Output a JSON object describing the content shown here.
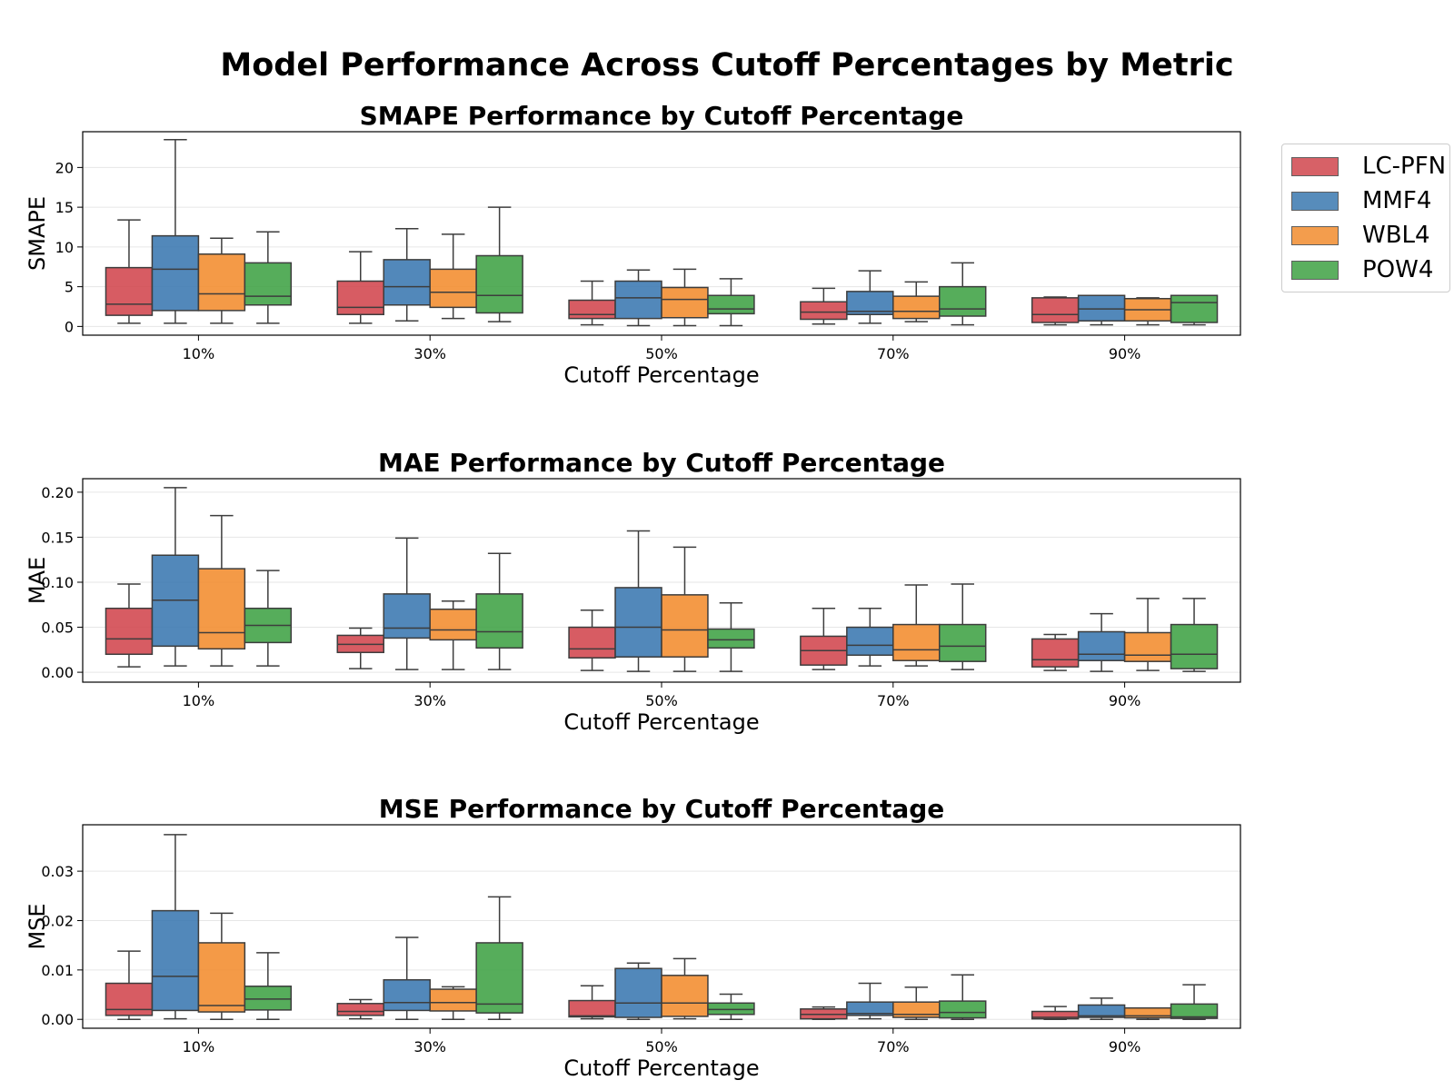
{
  "suptitle": "Model Performance Across Cutoff Percentages by Metric",
  "legend": {
    "placement": "right, outside top",
    "items": [
      {
        "name": "LC-PFN",
        "color": "#d1464d"
      },
      {
        "name": "MMF4",
        "color": "#3a78b0"
      },
      {
        "name": "WBL4",
        "color": "#f28c2e"
      },
      {
        "name": "POW4",
        "color": "#3fa244"
      }
    ]
  },
  "chart_data": [
    {
      "type": "box",
      "title": "SMAPE Performance by Cutoff Percentage",
      "xlabel": "Cutoff Percentage",
      "ylabel": "SMAPE",
      "categories": [
        "10%",
        "30%",
        "50%",
        "70%",
        "90%"
      ],
      "ylim": [
        -1.1,
        24.5
      ],
      "yticks": [
        0,
        5,
        10,
        15,
        20
      ],
      "ytick_labels": [
        "0",
        "5",
        "10",
        "15",
        "20"
      ],
      "grid": "horizontal",
      "series": [
        {
          "name": "LC-PFN",
          "boxes": [
            [
              0.4,
              1.4,
              2.8,
              7.4,
              13.4
            ],
            [
              0.4,
              1.5,
              2.4,
              5.7,
              9.4
            ],
            [
              0.2,
              1.0,
              1.5,
              3.3,
              5.7
            ],
            [
              0.3,
              0.9,
              1.8,
              3.1,
              4.8
            ],
            [
              0.2,
              0.5,
              1.5,
              3.6,
              3.7
            ]
          ]
        },
        {
          "name": "MMF4",
          "boxes": [
            [
              0.4,
              2.0,
              7.2,
              11.4,
              23.5
            ],
            [
              0.7,
              2.7,
              5.0,
              8.4,
              12.3
            ],
            [
              0.1,
              1.0,
              3.6,
              5.7,
              7.1
            ],
            [
              0.4,
              1.5,
              1.9,
              4.4,
              7.0
            ],
            [
              0.2,
              0.7,
              2.2,
              3.9,
              3.9
            ]
          ]
        },
        {
          "name": "WBL4",
          "boxes": [
            [
              0.4,
              2.0,
              4.1,
              9.1,
              11.1
            ],
            [
              1.0,
              2.4,
              4.3,
              7.2,
              11.6
            ],
            [
              0.1,
              1.1,
              3.4,
              4.9,
              7.2
            ],
            [
              0.6,
              1.0,
              1.9,
              3.8,
              5.6
            ],
            [
              0.2,
              0.7,
              2.1,
              3.5,
              3.6
            ]
          ]
        },
        {
          "name": "POW4",
          "boxes": [
            [
              0.4,
              2.7,
              3.8,
              8.0,
              11.9
            ],
            [
              0.6,
              1.7,
              3.9,
              8.9,
              15.0
            ],
            [
              0.1,
              1.6,
              2.2,
              3.9,
              6.0
            ],
            [
              0.2,
              1.3,
              2.2,
              5.0,
              8.0
            ],
            [
              0.2,
              0.5,
              3.0,
              3.9,
              3.9
            ]
          ]
        }
      ]
    },
    {
      "type": "box",
      "title": "MAE Performance by Cutoff Percentage",
      "xlabel": "Cutoff Percentage",
      "ylabel": "MAE",
      "categories": [
        "10%",
        "30%",
        "50%",
        "70%",
        "90%"
      ],
      "ylim": [
        -0.011,
        0.215
      ],
      "yticks": [
        0,
        0.05,
        0.1,
        0.15,
        0.2
      ],
      "ytick_labels": [
        "0.00",
        "0.05",
        "0.10",
        "0.15",
        "0.20"
      ],
      "grid": "horizontal",
      "series": [
        {
          "name": "LC-PFN",
          "boxes": [
            [
              0.006,
              0.02,
              0.037,
              0.071,
              0.098
            ],
            [
              0.004,
              0.022,
              0.031,
              0.041,
              0.049
            ],
            [
              0.002,
              0.016,
              0.026,
              0.05,
              0.069
            ],
            [
              0.003,
              0.008,
              0.024,
              0.04,
              0.071
            ],
            [
              0.002,
              0.006,
              0.014,
              0.037,
              0.042
            ]
          ]
        },
        {
          "name": "MMF4",
          "boxes": [
            [
              0.007,
              0.029,
              0.08,
              0.13,
              0.205
            ],
            [
              0.003,
              0.038,
              0.049,
              0.087,
              0.149
            ],
            [
              0.001,
              0.017,
              0.05,
              0.094,
              0.157
            ],
            [
              0.007,
              0.019,
              0.03,
              0.05,
              0.071
            ],
            [
              0.001,
              0.013,
              0.02,
              0.045,
              0.065
            ]
          ]
        },
        {
          "name": "WBL4",
          "boxes": [
            [
              0.007,
              0.026,
              0.044,
              0.115,
              0.174
            ],
            [
              0.003,
              0.036,
              0.047,
              0.07,
              0.079
            ],
            [
              0.001,
              0.017,
              0.047,
              0.086,
              0.139
            ],
            [
              0.007,
              0.013,
              0.025,
              0.053,
              0.097
            ],
            [
              0.002,
              0.012,
              0.019,
              0.044,
              0.082
            ]
          ]
        },
        {
          "name": "POW4",
          "boxes": [
            [
              0.007,
              0.033,
              0.052,
              0.071,
              0.113
            ],
            [
              0.003,
              0.027,
              0.045,
              0.087,
              0.132
            ],
            [
              0.001,
              0.027,
              0.036,
              0.048,
              0.077
            ],
            [
              0.003,
              0.012,
              0.029,
              0.053,
              0.098
            ],
            [
              0.001,
              0.004,
              0.02,
              0.053,
              0.082
            ]
          ]
        }
      ]
    },
    {
      "type": "box",
      "title": "MSE Performance by Cutoff Percentage",
      "xlabel": "Cutoff Percentage",
      "ylabel": "MSE",
      "categories": [
        "10%",
        "30%",
        "50%",
        "70%",
        "90%"
      ],
      "ylim": [
        -0.0018,
        0.0394
      ],
      "yticks": [
        0,
        0.01,
        0.02,
        0.03
      ],
      "ytick_labels": [
        "0.00",
        "0.01",
        "0.02",
        "0.03"
      ],
      "grid": "horizontal",
      "series": [
        {
          "name": "LC-PFN",
          "boxes": [
            [
              0.0,
              0.0008,
              0.002,
              0.0073,
              0.0138
            ],
            [
              0.0001,
              0.0008,
              0.0016,
              0.0032,
              0.004
            ],
            [
              0.0001,
              0.0005,
              0.0007,
              0.0038,
              0.0068
            ],
            [
              0.0,
              0.0001,
              0.001,
              0.0021,
              0.0025
            ],
            [
              0.0,
              0.0001,
              0.0004,
              0.0016,
              0.0026
            ]
          ]
        },
        {
          "name": "MMF4",
          "boxes": [
            [
              0.0001,
              0.0018,
              0.0087,
              0.022,
              0.0374
            ],
            [
              0.0,
              0.0018,
              0.0034,
              0.008,
              0.0166
            ],
            [
              0.0,
              0.0004,
              0.0033,
              0.0103,
              0.0114
            ],
            [
              0.0001,
              0.0008,
              0.0012,
              0.0035,
              0.0073
            ],
            [
              0.0,
              0.0004,
              0.0007,
              0.0029,
              0.0043
            ]
          ]
        },
        {
          "name": "WBL4",
          "boxes": [
            [
              0.0,
              0.0015,
              0.0028,
              0.0155,
              0.0215
            ],
            [
              0.0,
              0.0017,
              0.0034,
              0.0061,
              0.0066
            ],
            [
              0.0001,
              0.0006,
              0.0033,
              0.0089,
              0.0123
            ],
            [
              0.0,
              0.0004,
              0.001,
              0.0035,
              0.0065
            ],
            [
              0.0,
              0.0003,
              0.0007,
              0.0023,
              0.0023
            ]
          ]
        },
        {
          "name": "POW4",
          "boxes": [
            [
              0.0,
              0.0019,
              0.0041,
              0.0067,
              0.0135
            ],
            [
              0.0,
              0.0013,
              0.0031,
              0.0155,
              0.0248
            ],
            [
              0.0,
              0.001,
              0.002,
              0.0033,
              0.0051
            ],
            [
              0.0,
              0.0003,
              0.0014,
              0.0037,
              0.009
            ],
            [
              0.0,
              0.0002,
              0.0005,
              0.0031,
              0.007
            ]
          ]
        }
      ]
    }
  ]
}
